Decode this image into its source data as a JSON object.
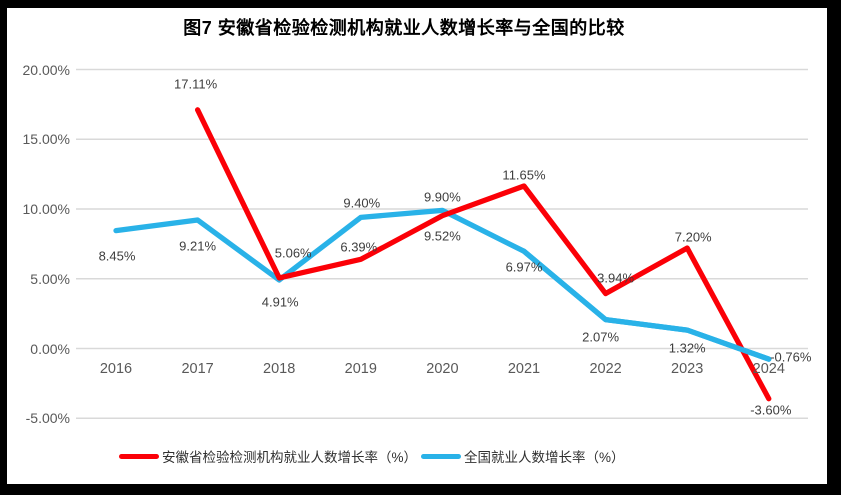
{
  "title": "图7 安徽省检验检测机构就业人数增长率与全国的比较",
  "chart_data": {
    "type": "line",
    "x": [
      "2016",
      "2017",
      "2018",
      "2019",
      "2020",
      "2021",
      "2022",
      "2023",
      "2024"
    ],
    "series": [
      {
        "name": "安徽省检验检测机构就业人数增长率（%）",
        "color": "#FB0007",
        "values": [
          null,
          17.11,
          5.06,
          6.39,
          9.52,
          11.65,
          3.94,
          7.2,
          -3.6
        ]
      },
      {
        "name": "全国就业人数增长率（%）",
        "color": "#29B2E8",
        "values": [
          8.45,
          9.21,
          4.91,
          9.4,
          9.9,
          6.97,
          2.07,
          1.32,
          -0.76
        ]
      }
    ],
    "y_ticks": [
      {
        "label": "20.00%",
        "value": 20
      },
      {
        "label": "15.00%",
        "value": 15
      },
      {
        "label": "10.00%",
        "value": 10
      },
      {
        "label": "5.00%",
        "value": 5
      },
      {
        "label": "0.00%",
        "value": 0
      },
      {
        "label": "-5.00%",
        "value": -5
      }
    ],
    "ylim": [
      -5,
      20
    ],
    "grid": true,
    "data_labels": true,
    "legend_position": "bottom"
  },
  "colors": {
    "grid": "#D9D9D9",
    "axis_text": "#595959",
    "data_label_text": "#3E3E3E",
    "frame": "#000000",
    "background": "#FFFFFF"
  }
}
